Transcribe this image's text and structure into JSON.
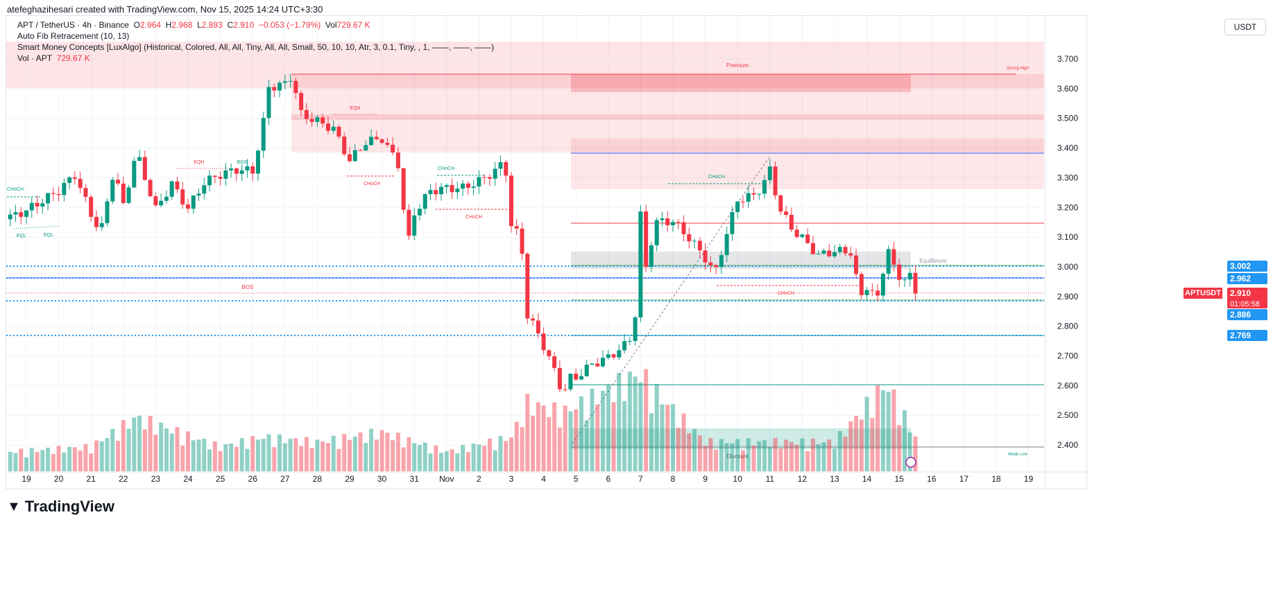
{
  "credit": "atefeghazihesari created with TradingView.com, Nov 15, 2025 14:24 UTC+3:30",
  "legend": {
    "symbol": "APT / TetherUS · 4h · Binance",
    "o_label": "O",
    "o": "2.964",
    "h_label": "H",
    "h": "2.968",
    "l_label": "L",
    "l": "2.893",
    "c_label": "C",
    "c": "2.910",
    "change": "−0.053 (−1.79%)",
    "vol_label": "Vol",
    "vol": "729.67 K",
    "fib": "Auto Fib Retracement (10, 13)",
    "smc": "Smart Money Concepts [LuxAlgo] (Historical, Colored, All, All, Tiny, All, All, Small, 50, 10, 10, Atr, 3, 0.1, Tiny, , 1, ——, ——, ——)",
    "vol_ind": "Vol · APT",
    "vol_ind_val": "729.67 K"
  },
  "currency_button": "USDT",
  "price_labels": {
    "l3002": "3.002",
    "l2962": "2.962",
    "symbol": "APTUSDT",
    "last": "2.910",
    "countdown": "01:05:58",
    "l2886": "2.886",
    "l2769": "2.769"
  },
  "annotations": {
    "premium": "Premium",
    "strong_high": "Strong High",
    "equilibrium": "Equilibrium",
    "discount": "Discount",
    "weak_low": "Weak Low",
    "choch": "CHoCH",
    "eql": "EQL",
    "eqh": "EQH",
    "bos": "BOS"
  },
  "footer": "TradingView",
  "colors": {
    "up": "#089981",
    "down": "#f23645",
    "blue": "#2962ff",
    "label_blue": "#2196f3"
  },
  "chart_data": {
    "type": "candlestick",
    "interval": "4h",
    "y_ticks": [
      "3.700",
      "3.600",
      "3.500",
      "3.400",
      "3.300",
      "3.200",
      "3.100",
      "3.000",
      "2.900",
      "2.800",
      "2.700",
      "2.600",
      "2.500",
      "2.400"
    ],
    "ylim": [
      2.35,
      3.75
    ],
    "x_ticks": [
      "19",
      "20",
      "21",
      "22",
      "23",
      "24",
      "25",
      "26",
      "27",
      "28",
      "29",
      "30",
      "31",
      "Nov",
      "2",
      "3",
      "4",
      "5",
      "6",
      "7",
      "8",
      "9",
      "10",
      "11",
      "12",
      "13",
      "14",
      "15",
      "16",
      "17",
      "18",
      "19"
    ],
    "close_waypoints": [
      [
        -0.5,
        3.16
      ],
      [
        0,
        3.19
      ],
      [
        1,
        3.27
      ],
      [
        1.5,
        3.33
      ],
      [
        2,
        3.2
      ],
      [
        2.3,
        3.14
      ],
      [
        2.7,
        3.35
      ],
      [
        3,
        3.23
      ],
      [
        3.4,
        3.41
      ],
      [
        4,
        3.21
      ],
      [
        4.5,
        3.29
      ],
      [
        5,
        3.2
      ],
      [
        5.5,
        3.28
      ],
      [
        6,
        3.3
      ],
      [
        6.5,
        3.31
      ],
      [
        7,
        3.3
      ],
      [
        7.3,
        3.44
      ],
      [
        7.5,
        3.58
      ],
      [
        8,
        3.59
      ],
      [
        8.2,
        3.62
      ],
      [
        8.5,
        3.49
      ],
      [
        9,
        3.47
      ],
      [
        9.5,
        3.45
      ],
      [
        10,
        3.35
      ],
      [
        10.5,
        3.42
      ],
      [
        11,
        3.44
      ],
      [
        11.5,
        3.36
      ],
      [
        11.8,
        3.09
      ],
      [
        12,
        3.2
      ],
      [
        12.5,
        3.28
      ],
      [
        13,
        3.29
      ],
      [
        13.5,
        3.29
      ],
      [
        14,
        3.31
      ],
      [
        14.5,
        3.34
      ],
      [
        14.8,
        3.37
      ],
      [
        15,
        3.15
      ],
      [
        15.3,
        3.1
      ],
      [
        15.5,
        2.84
      ],
      [
        15.8,
        2.78
      ],
      [
        16,
        2.73
      ],
      [
        16.3,
        2.65
      ],
      [
        16.6,
        2.56
      ],
      [
        16.8,
        2.61
      ],
      [
        17,
        2.61
      ],
      [
        17.5,
        2.65
      ],
      [
        18,
        2.67
      ],
      [
        18.5,
        2.71
      ],
      [
        18.8,
        2.75
      ],
      [
        19,
        3.15
      ],
      [
        19.2,
        2.94
      ],
      [
        19.4,
        3.13
      ],
      [
        20,
        3.14
      ],
      [
        20.5,
        3.09
      ],
      [
        21,
        3.03
      ],
      [
        21.3,
        2.98
      ],
      [
        21.6,
        3.1
      ],
      [
        22,
        3.24
      ],
      [
        22.5,
        3.26
      ],
      [
        22.8,
        3.3
      ],
      [
        23,
        3.35
      ],
      [
        23.3,
        3.22
      ],
      [
        23.7,
        3.15
      ],
      [
        24,
        3.12
      ],
      [
        24.5,
        3.06
      ],
      [
        25,
        3.07
      ],
      [
        25.5,
        3.06
      ],
      [
        25.8,
        2.9
      ],
      [
        26,
        2.94
      ],
      [
        26.4,
        2.88
      ],
      [
        26.6,
        3.09
      ],
      [
        26.8,
        2.99
      ],
      [
        27,
        2.95
      ],
      [
        27.3,
        2.96
      ],
      [
        27.5,
        2.91
      ]
    ],
    "volume_waypoints": [
      [
        -0.5,
        0.2
      ],
      [
        2,
        0.25
      ],
      [
        3.4,
        0.55
      ],
      [
        6,
        0.25
      ],
      [
        7.3,
        0.35
      ],
      [
        9,
        0.3
      ],
      [
        11,
        0.4
      ],
      [
        13,
        0.2
      ],
      [
        15,
        0.35
      ],
      [
        15.5,
        0.7
      ],
      [
        16.6,
        0.6
      ],
      [
        19,
        1.0
      ],
      [
        19.5,
        0.8
      ],
      [
        21,
        0.3
      ],
      [
        23,
        0.3
      ],
      [
        25,
        0.3
      ],
      [
        26.6,
        0.9
      ],
      [
        27.5,
        0.35
      ]
    ]
  }
}
